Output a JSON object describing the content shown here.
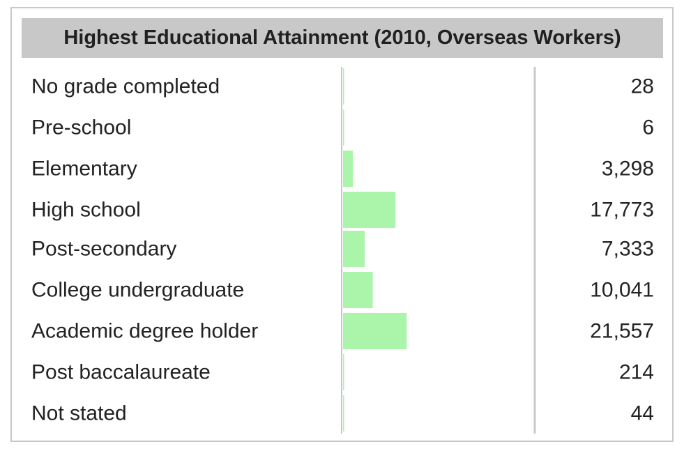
{
  "chart_data": {
    "type": "table",
    "title": "Highest Educational Attainment (2010, Overseas Workers)",
    "categories": [
      "No grade completed",
      "Pre-school",
      "Elementary",
      "High school",
      "Post-secondary",
      "College undergraduate",
      "Academic degree holder",
      "Post baccalaureate",
      "Not stated"
    ],
    "values": [
      28,
      6,
      3298,
      17773,
      7333,
      10041,
      21557,
      214,
      44
    ],
    "value_labels": [
      "28",
      "6",
      "3,298",
      "17,773",
      "7,333",
      "10,041",
      "21,557",
      "214",
      "44"
    ],
    "bar_max": 65000,
    "bar_color": "#aaf5aa",
    "grid": false,
    "legend": "none"
  }
}
